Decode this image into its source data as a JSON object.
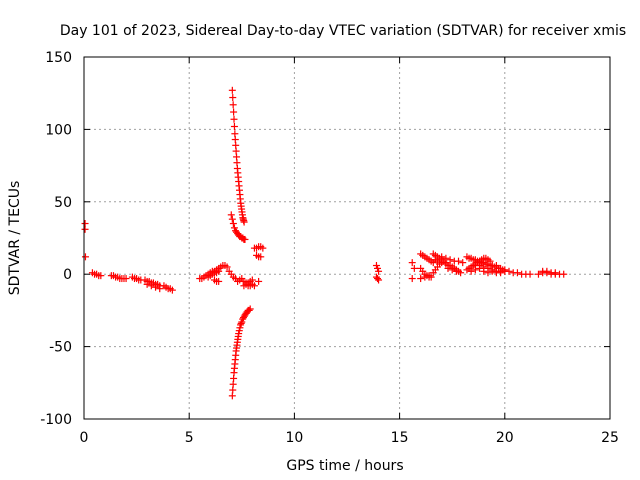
{
  "chart_data": {
    "type": "scatter",
    "title": "Day 101 of 2023, Sidereal Day-to-day VTEC variation (SDTVAR) for receiver xmis",
    "xlabel": "GPS time / hours",
    "ylabel": "SDTVAR / TECUs",
    "xlim": [
      0,
      25
    ],
    "ylim": [
      -100,
      150
    ],
    "xticks": [
      0,
      5,
      10,
      15,
      20,
      25
    ],
    "yticks": [
      -100,
      -50,
      0,
      50,
      100,
      150
    ],
    "grid": true,
    "marker": "plus",
    "series": [
      {
        "name": "SDTVAR",
        "color": "#ff0000",
        "points": [
          [
            0.05,
            35
          ],
          [
            0.05,
            31
          ],
          [
            0.07,
            12
          ],
          [
            0.4,
            1
          ],
          [
            0.5,
            0
          ],
          [
            0.6,
            0
          ],
          [
            0.7,
            -1
          ],
          [
            0.8,
            -1
          ],
          [
            1.3,
            -1
          ],
          [
            1.4,
            -1
          ],
          [
            1.5,
            -2
          ],
          [
            1.6,
            -2
          ],
          [
            1.7,
            -3
          ],
          [
            1.8,
            -3
          ],
          [
            1.9,
            -3
          ],
          [
            2.0,
            -3
          ],
          [
            2.3,
            -2
          ],
          [
            2.4,
            -3
          ],
          [
            2.5,
            -3
          ],
          [
            2.6,
            -4
          ],
          [
            2.7,
            -4
          ],
          [
            2.9,
            -4
          ],
          [
            3.0,
            -5
          ],
          [
            3.1,
            -5
          ],
          [
            3.2,
            -6
          ],
          [
            3.3,
            -6
          ],
          [
            3.4,
            -7
          ],
          [
            3.5,
            -7
          ],
          [
            3.6,
            -8
          ],
          [
            3.0,
            -7
          ],
          [
            3.2,
            -8
          ],
          [
            3.4,
            -9
          ],
          [
            3.6,
            -10
          ],
          [
            3.8,
            -8
          ],
          [
            3.9,
            -9
          ],
          [
            4.0,
            -10
          ],
          [
            4.1,
            -10
          ],
          [
            4.2,
            -11
          ],
          [
            5.5,
            -3
          ],
          [
            5.6,
            -3
          ],
          [
            5.7,
            -2
          ],
          [
            5.8,
            -1
          ],
          [
            5.9,
            0
          ],
          [
            6.0,
            1
          ],
          [
            6.1,
            2
          ],
          [
            6.2,
            2
          ],
          [
            6.3,
            3
          ],
          [
            6.4,
            4
          ],
          [
            6.5,
            5
          ],
          [
            6.6,
            6
          ],
          [
            6.7,
            6
          ],
          [
            6.8,
            5
          ],
          [
            5.9,
            -2
          ],
          [
            6.0,
            -1
          ],
          [
            6.1,
            0
          ],
          [
            6.2,
            1
          ],
          [
            6.3,
            1
          ],
          [
            6.4,
            2
          ],
          [
            6.2,
            -4
          ],
          [
            6.3,
            -5
          ],
          [
            6.4,
            -5
          ],
          [
            6.9,
            2
          ],
          [
            7.0,
            0
          ],
          [
            7.1,
            -2
          ],
          [
            7.2,
            -3
          ],
          [
            7.3,
            -5
          ],
          [
            7.4,
            -4
          ],
          [
            7.5,
            -3
          ],
          [
            7.6,
            -5
          ],
          [
            7.7,
            -6
          ],
          [
            7.8,
            -6
          ],
          [
            7.9,
            -5
          ],
          [
            8.0,
            -4
          ],
          [
            7.6,
            -8
          ],
          [
            7.7,
            -7
          ],
          [
            7.8,
            -8
          ],
          [
            7.9,
            -8
          ],
          [
            8.0,
            -7
          ],
          [
            8.1,
            -8
          ],
          [
            8.3,
            -5
          ],
          [
            7.05,
            127
          ],
          [
            7.07,
            122
          ],
          [
            7.09,
            117
          ],
          [
            7.11,
            112
          ],
          [
            7.13,
            107
          ],
          [
            7.15,
            102
          ],
          [
            7.17,
            97
          ],
          [
            7.19,
            93
          ],
          [
            7.21,
            89
          ],
          [
            7.23,
            85
          ],
          [
            7.25,
            81
          ],
          [
            7.27,
            77
          ],
          [
            7.29,
            73
          ],
          [
            7.31,
            70
          ],
          [
            7.33,
            67
          ],
          [
            7.35,
            64
          ],
          [
            7.37,
            61
          ],
          [
            7.39,
            58
          ],
          [
            7.41,
            55
          ],
          [
            7.43,
            52
          ],
          [
            7.45,
            49
          ],
          [
            7.47,
            47
          ],
          [
            7.49,
            45
          ],
          [
            7.51,
            43
          ],
          [
            7.53,
            41
          ],
          [
            7.55,
            39
          ],
          [
            7.57,
            38
          ],
          [
            7.59,
            37
          ],
          [
            7.61,
            36
          ],
          [
            7.0,
            41
          ],
          [
            7.05,
            38
          ],
          [
            7.1,
            35
          ],
          [
            7.15,
            32
          ],
          [
            7.2,
            30
          ],
          [
            7.25,
            29
          ],
          [
            7.3,
            28
          ],
          [
            7.35,
            27
          ],
          [
            7.4,
            26
          ],
          [
            7.45,
            26
          ],
          [
            7.5,
            25
          ],
          [
            7.55,
            25
          ],
          [
            7.6,
            24
          ],
          [
            7.65,
            24
          ],
          [
            8.1,
            18
          ],
          [
            8.2,
            18
          ],
          [
            8.3,
            19
          ],
          [
            8.4,
            19
          ],
          [
            8.5,
            18
          ],
          [
            8.2,
            13
          ],
          [
            8.3,
            12
          ],
          [
            8.4,
            12
          ],
          [
            7.05,
            -84
          ],
          [
            7.07,
            -80
          ],
          [
            7.09,
            -76
          ],
          [
            7.11,
            -72
          ],
          [
            7.13,
            -68
          ],
          [
            7.15,
            -65
          ],
          [
            7.17,
            -62
          ],
          [
            7.19,
            -59
          ],
          [
            7.21,
            -56
          ],
          [
            7.23,
            -53
          ],
          [
            7.25,
            -51
          ],
          [
            7.27,
            -49
          ],
          [
            7.29,
            -47
          ],
          [
            7.31,
            -45
          ],
          [
            7.33,
            -43
          ],
          [
            7.35,
            -41
          ],
          [
            7.38,
            -39
          ],
          [
            7.41,
            -37
          ],
          [
            7.44,
            -35
          ],
          [
            7.47,
            -34
          ],
          [
            7.5,
            -33
          ],
          [
            7.54,
            -31
          ],
          [
            7.58,
            -30
          ],
          [
            7.62,
            -29
          ],
          [
            7.66,
            -28
          ],
          [
            7.7,
            -27
          ],
          [
            7.75,
            -26
          ],
          [
            7.8,
            -25
          ],
          [
            7.85,
            -25
          ],
          [
            7.9,
            -24
          ],
          [
            13.9,
            6
          ],
          [
            13.95,
            4
          ],
          [
            14.0,
            2
          ],
          [
            13.9,
            -2
          ],
          [
            13.95,
            -3
          ],
          [
            14.0,
            -4
          ],
          [
            15.6,
            8
          ],
          [
            15.7,
            4
          ],
          [
            15.6,
            -3
          ],
          [
            16.0,
            14
          ],
          [
            16.1,
            13
          ],
          [
            16.2,
            12
          ],
          [
            16.3,
            11
          ],
          [
            16.4,
            10
          ],
          [
            16.5,
            9
          ],
          [
            16.6,
            8
          ],
          [
            16.0,
            4
          ],
          [
            16.1,
            2
          ],
          [
            16.2,
            0
          ],
          [
            16.3,
            -1
          ],
          [
            16.4,
            -2
          ],
          [
            16.5,
            -2
          ],
          [
            16.0,
            -3
          ],
          [
            16.2,
            -2
          ],
          [
            16.4,
            -1
          ],
          [
            16.6,
            1
          ],
          [
            16.7,
            3
          ],
          [
            16.8,
            5
          ],
          [
            16.9,
            7
          ],
          [
            16.6,
            14
          ],
          [
            16.7,
            13
          ],
          [
            16.8,
            12
          ],
          [
            16.9,
            11
          ],
          [
            17.0,
            10
          ],
          [
            17.1,
            9
          ],
          [
            17.2,
            8
          ],
          [
            17.3,
            6
          ],
          [
            16.7,
            10
          ],
          [
            16.8,
            9
          ],
          [
            17.0,
            8
          ],
          [
            17.2,
            7
          ],
          [
            17.4,
            6
          ],
          [
            17.5,
            5
          ],
          [
            17.6,
            4
          ],
          [
            17.7,
            3
          ],
          [
            17.8,
            2
          ],
          [
            17.0,
            12
          ],
          [
            17.2,
            11
          ],
          [
            17.4,
            10
          ],
          [
            17.6,
            9
          ],
          [
            17.8,
            9
          ],
          [
            18.0,
            8
          ],
          [
            17.3,
            4
          ],
          [
            17.5,
            3
          ],
          [
            17.7,
            2
          ],
          [
            17.9,
            1
          ],
          [
            18.2,
            12
          ],
          [
            18.3,
            11
          ],
          [
            18.4,
            11
          ],
          [
            18.5,
            10
          ],
          [
            18.6,
            10
          ],
          [
            18.7,
            9
          ],
          [
            18.8,
            9
          ],
          [
            18.9,
            8
          ],
          [
            19.0,
            8
          ],
          [
            19.1,
            7
          ],
          [
            19.2,
            7
          ],
          [
            19.3,
            6
          ],
          [
            19.4,
            6
          ],
          [
            19.5,
            5
          ],
          [
            19.6,
            5
          ],
          [
            19.7,
            4
          ],
          [
            19.8,
            4
          ],
          [
            19.9,
            3
          ],
          [
            20.0,
            3
          ],
          [
            18.2,
            3
          ],
          [
            18.3,
            4
          ],
          [
            18.4,
            5
          ],
          [
            18.5,
            6
          ],
          [
            18.6,
            7
          ],
          [
            18.7,
            8
          ],
          [
            18.8,
            9
          ],
          [
            18.9,
            10
          ],
          [
            19.0,
            11
          ],
          [
            19.1,
            11
          ],
          [
            19.2,
            10
          ],
          [
            19.3,
            9
          ],
          [
            18.4,
            2
          ],
          [
            18.6,
            3
          ],
          [
            18.8,
            4
          ],
          [
            19.0,
            5
          ],
          [
            19.2,
            4
          ],
          [
            19.4,
            3
          ],
          [
            19.6,
            2
          ],
          [
            19.8,
            2
          ],
          [
            18.6,
            6
          ],
          [
            18.8,
            6
          ],
          [
            19.0,
            7
          ],
          [
            19.2,
            7
          ],
          [
            19.4,
            6
          ],
          [
            19.6,
            6
          ],
          [
            19.0,
            2
          ],
          [
            19.2,
            1
          ],
          [
            19.4,
            2
          ],
          [
            19.6,
            1
          ],
          [
            19.8,
            1
          ],
          [
            20.0,
            2
          ],
          [
            20.2,
            2
          ],
          [
            20.4,
            1
          ],
          [
            20.6,
            1
          ],
          [
            20.8,
            0
          ],
          [
            21.0,
            0
          ],
          [
            21.2,
            0
          ],
          [
            21.6,
            0
          ],
          [
            21.8,
            1
          ],
          [
            22.0,
            1
          ],
          [
            22.2,
            1
          ],
          [
            22.4,
            1
          ],
          [
            22.6,
            0
          ],
          [
            22.8,
            0
          ],
          [
            21.8,
            2
          ],
          [
            22.0,
            2
          ],
          [
            22.2,
            0
          ],
          [
            22.4,
            0
          ]
        ]
      }
    ]
  }
}
